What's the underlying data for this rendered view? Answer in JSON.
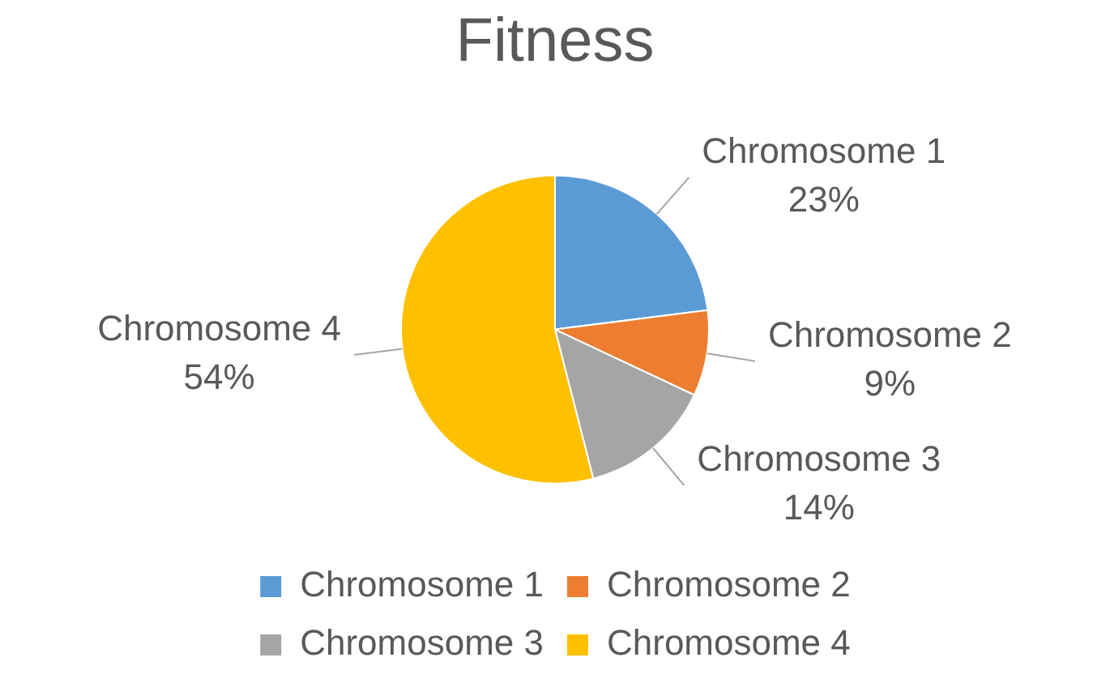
{
  "chart_data": {
    "type": "pie",
    "title": "Fitness",
    "categories": [
      "Chromosome 1",
      "Chromosome 2",
      "Chromosome 3",
      "Chromosome 4"
    ],
    "values": [
      23,
      9,
      14,
      54
    ],
    "colors": [
      "#5b9bd5",
      "#ed7d31",
      "#a5a5a5",
      "#ffc000"
    ],
    "value_labels": [
      "23%",
      "9%",
      "14%",
      "54%"
    ],
    "legend": "bottom"
  }
}
